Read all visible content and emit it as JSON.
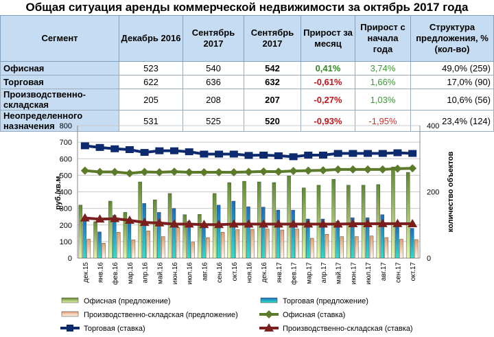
{
  "title": "Общая ситуация аренды коммерческой недвижимости за октябрь 2017 года",
  "table": {
    "headers": [
      "Сегмент",
      "Декабрь 2016",
      "Сентябрь 2017",
      "Сентябрь 2017",
      "Прирост за месяц",
      "Прирост с начала года",
      "Структура предложения, % (кол-во)"
    ],
    "rows": [
      [
        "Офисная",
        "523",
        "540",
        "542",
        "0,41%",
        "3,74%",
        "49,0% (259)"
      ],
      [
        "Торговая",
        "622",
        "636",
        "632",
        "-0,61%",
        "1,66%",
        "17,0% (90)"
      ],
      [
        "Производственно-складская",
        "205",
        "208",
        "207",
        "-0,27%",
        "1,03%",
        "10,6% (56)"
      ],
      [
        "Неопределенного назначения",
        "531",
        "525",
        "520",
        "-0,93%",
        "-1,95%",
        "23,4% (124)"
      ]
    ]
  },
  "chart_data": {
    "type": "bar+line",
    "ylabel": "руб./кв.м.",
    "y2label": "количество объектов",
    "ylim": [
      0,
      800
    ],
    "y2lim": [
      0,
      400
    ],
    "yticks": [
      "0",
      "100",
      "200",
      "300",
      "400",
      "500",
      "600",
      "700",
      "800"
    ],
    "y2ticks": [
      "0",
      "200",
      "400"
    ],
    "categories": [
      "дек.15",
      "янв.16",
      "фев.16",
      "мар.16",
      "апр.16",
      "май.16",
      "июн.16",
      "июл.16",
      "авг.16",
      "сен.16",
      "окт.16",
      "ноя.16",
      "дек.16",
      "янв.17",
      "фев.17",
      "мар.17",
      "апр.17",
      "май.17",
      "июн.17",
      "июл.17",
      "авг.17",
      "сен.17",
      "окт.17"
    ],
    "bars": [
      {
        "name": "Офисная (предложение)",
        "color": "#7aa84a",
        "axis": "y2",
        "values": [
          160,
          110,
          172,
          138,
          230,
          176,
          195,
          131,
          132,
          195,
          228,
          232,
          230,
          228,
          248,
          212,
          220,
          238,
          220,
          220,
          222,
          275,
          259
        ]
      },
      {
        "name": "Торговая (предложение)",
        "color": "#1f7ac8",
        "axis": "y2",
        "values": [
          120,
          79,
          129,
          112,
          165,
          138,
          150,
          111,
          100,
          160,
          172,
          155,
          154,
          145,
          145,
          118,
          118,
          111,
          122,
          122,
          131,
          95,
          90
        ]
      },
      {
        "name": "Производственно-складская (предложение)",
        "color": "#f0c9a0",
        "axis": "y2",
        "values": [
          57,
          45,
          78,
          55,
          82,
          65,
          92,
          48,
          62,
          78,
          86,
          87,
          88,
          85,
          88,
          60,
          72,
          65,
          65,
          67,
          62,
          57,
          56
        ]
      }
    ],
    "lines": [
      {
        "name": "Офисная (ставка)",
        "color": "#5b7a2a",
        "marker": "diamond",
        "values": [
          528,
          520,
          520,
          512,
          520,
          518,
          522,
          518,
          518,
          518,
          518,
          520,
          523,
          522,
          526,
          528,
          530,
          535,
          535,
          535,
          535,
          540,
          542
        ]
      },
      {
        "name": "Торговая (ставка)",
        "color": "#0d2a6e",
        "marker": "square",
        "values": [
          678,
          668,
          660,
          655,
          638,
          648,
          648,
          642,
          628,
          628,
          628,
          620,
          622,
          618,
          612,
          622,
          622,
          632,
          632,
          632,
          632,
          636,
          632
        ]
      },
      {
        "name": "Производственно-складская (ставка)",
        "color": "#7a1e1e",
        "marker": "triangle",
        "values": [
          242,
          235,
          238,
          228,
          215,
          212,
          205,
          205,
          202,
          202,
          205,
          205,
          205,
          205,
          205,
          205,
          205,
          205,
          207,
          207,
          208,
          208,
          207
        ]
      }
    ],
    "legend_order": [
      "Офисная (предложение)",
      "Торговая (предложение)",
      "Производственно-складская (предложение)",
      "Офисная (ставка)",
      "Торговая (ставка)",
      "Производственно-складская (ставка)"
    ]
  }
}
